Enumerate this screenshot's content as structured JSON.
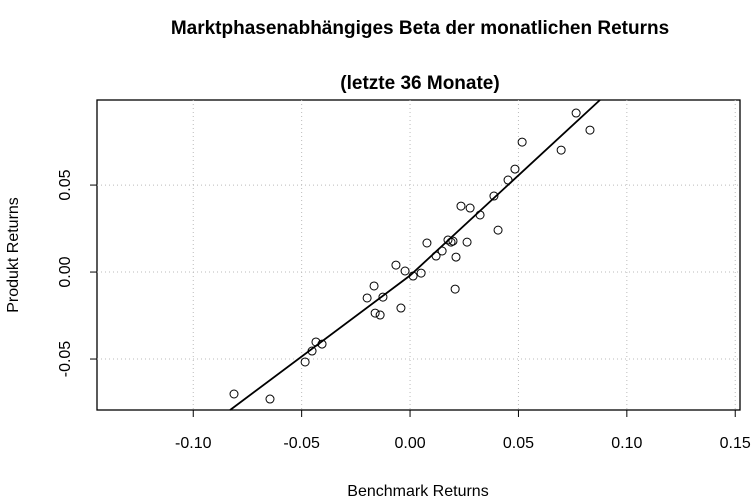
{
  "chart_data": {
    "type": "scatter",
    "title": "Marktphasenabhängiges Beta der monatlichen Returns",
    "subtitle": "(letzte 36 Monate)",
    "x_label": "Benchmark Returns",
    "y_label": "Produkt Returns",
    "xlim": [
      -0.1444,
      0.1522
    ],
    "ylim": [
      -0.0793,
      0.0989
    ],
    "xticks": [
      {
        "value": -0.1,
        "label": "-0.10"
      },
      {
        "value": -0.05,
        "label": "-0.05"
      },
      {
        "value": 0,
        "label": "0.00"
      },
      {
        "value": 0.05,
        "label": "0.05"
      },
      {
        "value": 0.1,
        "label": "0.10"
      },
      {
        "value": 0.15,
        "label": "0.15"
      }
    ],
    "yticks": [
      {
        "value": -0.05,
        "label": "-0.05"
      },
      {
        "value": 0,
        "label": "0.00"
      },
      {
        "value": 0.05,
        "label": "0.05"
      }
    ],
    "grid": true,
    "point_color": "#000000",
    "line_color": "#000000",
    "points": {
      "x": [
        -0.0812,
        -0.0646,
        -0.0484,
        -0.0452,
        -0.0434,
        -0.0406,
        -0.0198,
        -0.0166,
        -0.0161,
        -0.0138,
        -0.0125,
        -0.0065,
        -0.0042,
        -0.0023,
        0.0014,
        0.0051,
        0.0078,
        0.012,
        0.0148,
        0.0175,
        0.0189,
        0.0198,
        0.0208,
        0.0212,
        0.0235,
        0.0263,
        0.0277,
        0.0323,
        0.0387,
        0.0406,
        0.0452,
        0.0484,
        0.0517,
        0.0697,
        0.0766,
        0.083
      ],
      "y": [
        -0.0701,
        -0.073,
        -0.0517,
        -0.0454,
        -0.0402,
        -0.0414,
        -0.0149,
        -0.008,
        -0.0236,
        -0.0247,
        -0.0144,
        0.004,
        -0.0207,
        0.0006,
        -0.0023,
        -0.0006,
        0.0167,
        0.0092,
        0.0121,
        0.0184,
        0.0172,
        0.0178,
        -0.0098,
        0.0086,
        0.0379,
        0.0172,
        0.0368,
        0.0328,
        0.0437,
        0.0241,
        0.0529,
        0.0592,
        0.0747,
        0.0701,
        0.0914,
        0.0816
      ]
    },
    "fit": {
      "x": [
        -0.083,
        0,
        0.0876
      ],
      "y": [
        -0.0793,
        -0.002,
        0.0989
      ]
    }
  }
}
